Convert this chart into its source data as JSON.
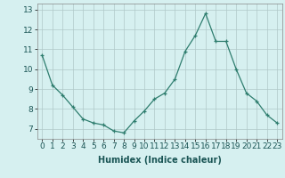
{
  "x": [
    0,
    1,
    2,
    3,
    4,
    5,
    6,
    7,
    8,
    9,
    10,
    11,
    12,
    13,
    14,
    15,
    16,
    17,
    18,
    19,
    20,
    21,
    22,
    23
  ],
  "y": [
    10.7,
    9.2,
    8.7,
    8.1,
    7.5,
    7.3,
    7.2,
    6.9,
    6.8,
    7.4,
    7.9,
    8.5,
    8.8,
    9.5,
    10.9,
    11.7,
    12.8,
    11.4,
    11.4,
    10.0,
    8.8,
    8.4,
    7.7,
    7.3
  ],
  "line_color": "#2e7d6e",
  "marker": "+",
  "marker_size": 3,
  "bg_color": "#d6f0f0",
  "grid_color": "#b0c8c8",
  "xlabel": "Humidex (Indice chaleur)",
  "ylim": [
    6.5,
    13.3
  ],
  "yticks": [
    7,
    8,
    9,
    10,
    11,
    12,
    13
  ],
  "xlim": [
    -0.5,
    23.5
  ],
  "xticks": [
    0,
    1,
    2,
    3,
    4,
    5,
    6,
    7,
    8,
    9,
    10,
    11,
    12,
    13,
    14,
    15,
    16,
    17,
    18,
    19,
    20,
    21,
    22,
    23
  ],
  "xlabel_fontsize": 7,
  "tick_fontsize": 6.5
}
